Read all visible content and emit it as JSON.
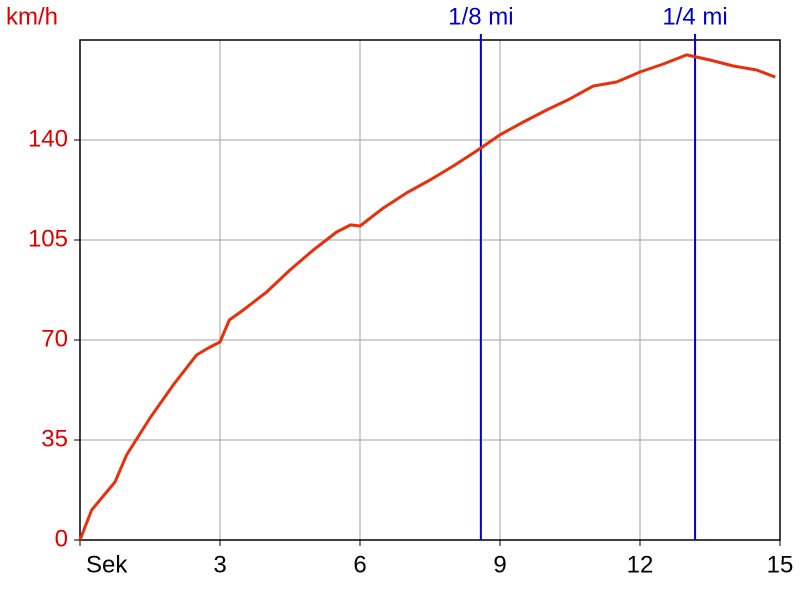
{
  "chart_data": {
    "type": "line",
    "y_label": "km/h",
    "x": [
      0,
      0.25,
      0.5,
      0.75,
      1,
      1.5,
      2,
      2.5,
      2.75,
      3,
      3.2,
      3.5,
      4,
      4.5,
      5,
      5.5,
      5.8,
      6,
      6.5,
      7,
      7.5,
      8,
      8.5,
      9,
      9.5,
      10,
      10.5,
      11,
      11.5,
      12,
      12.5,
      13,
      13.5,
      14,
      14.5,
      14.9
    ],
    "series": [
      {
        "color": "#e8300c",
        "values": [
          0,
          10.5,
          15.4,
          20.3,
          29.8,
          42.7,
          54.3,
          64.8,
          67.2,
          69.3,
          77,
          80.5,
          86.8,
          94.5,
          101.5,
          107.8,
          110.3,
          109.9,
          116.2,
          121.5,
          126,
          130.9,
          136.2,
          141.8,
          146.3,
          150.5,
          154.4,
          158.9,
          160.3,
          163.8,
          166.6,
          169.8,
          168,
          165.9,
          164.5,
          162
        ]
      }
    ],
    "xlim": [
      0,
      15
    ],
    "ylim": [
      0,
      175
    ],
    "xticks": [
      {
        "value": 0,
        "label": "Sek"
      },
      3,
      6,
      9,
      12,
      15
    ],
    "yticks": [
      0,
      35,
      70,
      105,
      140
    ],
    "grid": true,
    "axis_label_color": "#e00000",
    "markers": [
      {
        "label": "1/8 mi",
        "x": 8.59,
        "color": "#0000d0"
      },
      {
        "label": "1/4 mi",
        "x": 13.18,
        "color": "#0000d0"
      }
    ]
  }
}
